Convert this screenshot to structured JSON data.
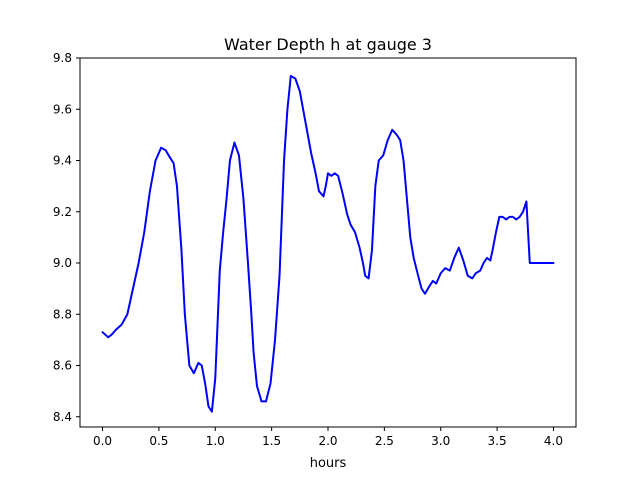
{
  "chart_data": {
    "type": "line",
    "title": "Water Depth h at gauge 3",
    "xlabel": "hours",
    "ylabel": "",
    "xlim": [
      -0.2,
      4.2
    ],
    "ylim": [
      8.36,
      9.8
    ],
    "xticks": [
      "0.0",
      "0.5",
      "1.0",
      "1.5",
      "2.0",
      "2.5",
      "3.0",
      "3.5",
      "4.0"
    ],
    "yticks": [
      "8.4",
      "8.6",
      "8.8",
      "9.0",
      "9.2",
      "9.4",
      "9.6",
      "9.8"
    ],
    "grid": false,
    "series": [
      {
        "color": "#0000ff",
        "x": [
          0.0,
          0.05,
          0.08,
          0.12,
          0.17,
          0.22,
          0.27,
          0.32,
          0.37,
          0.42,
          0.47,
          0.52,
          0.56,
          0.6,
          0.63,
          0.66,
          0.7,
          0.73,
          0.77,
          0.81,
          0.85,
          0.88,
          0.91,
          0.94,
          0.97,
          1.0,
          1.04,
          1.07,
          1.1,
          1.13,
          1.17,
          1.21,
          1.25,
          1.29,
          1.32,
          1.34,
          1.37,
          1.41,
          1.45,
          1.49,
          1.53,
          1.57,
          1.61,
          1.64,
          1.67,
          1.71,
          1.75,
          1.8,
          1.85,
          1.89,
          1.92,
          1.96,
          1.98,
          2.0,
          2.03,
          2.06,
          2.09,
          2.13,
          2.17,
          2.2,
          2.24,
          2.28,
          2.31,
          2.33,
          2.36,
          2.39,
          2.42,
          2.45,
          2.49,
          2.53,
          2.57,
          2.61,
          2.64,
          2.67,
          2.7,
          2.73,
          2.76,
          2.8,
          2.83,
          2.86,
          2.9,
          2.93,
          2.96,
          3.0,
          3.04,
          3.08,
          3.12,
          3.16,
          3.2,
          3.24,
          3.28,
          3.31,
          3.35,
          3.38,
          3.41,
          3.44,
          3.46,
          3.49,
          3.52,
          3.55,
          3.58,
          3.61,
          3.64,
          3.67,
          3.7,
          3.73,
          3.76,
          3.79,
          3.82,
          3.85,
          3.88,
          3.91,
          3.94,
          3.97,
          4.0
        ],
        "y": [
          8.73,
          8.71,
          8.72,
          8.74,
          8.76,
          8.8,
          8.9,
          9.0,
          9.12,
          9.28,
          9.4,
          9.45,
          9.44,
          9.41,
          9.39,
          9.3,
          9.05,
          8.8,
          8.6,
          8.57,
          8.61,
          8.6,
          8.53,
          8.44,
          8.42,
          8.55,
          8.97,
          9.12,
          9.25,
          9.4,
          9.47,
          9.42,
          9.25,
          9.0,
          8.8,
          8.65,
          8.52,
          8.46,
          8.46,
          8.53,
          8.7,
          8.95,
          9.4,
          9.6,
          9.73,
          9.72,
          9.67,
          9.55,
          9.43,
          9.35,
          9.28,
          9.26,
          9.3,
          9.35,
          9.34,
          9.35,
          9.34,
          9.27,
          9.19,
          9.15,
          9.12,
          9.06,
          9.0,
          8.95,
          8.94,
          9.05,
          9.3,
          9.4,
          9.42,
          9.48,
          9.52,
          9.5,
          9.48,
          9.4,
          9.25,
          9.1,
          9.02,
          8.95,
          8.9,
          8.88,
          8.91,
          8.93,
          8.92,
          8.96,
          8.98,
          8.97,
          9.02,
          9.06,
          9.01,
          8.95,
          8.94,
          8.96,
          8.97,
          9.0,
          9.02,
          9.01,
          9.05,
          9.12,
          9.18,
          9.18,
          9.17,
          9.18,
          9.18,
          9.17,
          9.18,
          9.2,
          9.24,
          9.0,
          9.0,
          9.0,
          9.0,
          9.0,
          9.0,
          9.0,
          9.0
        ]
      }
    ]
  }
}
